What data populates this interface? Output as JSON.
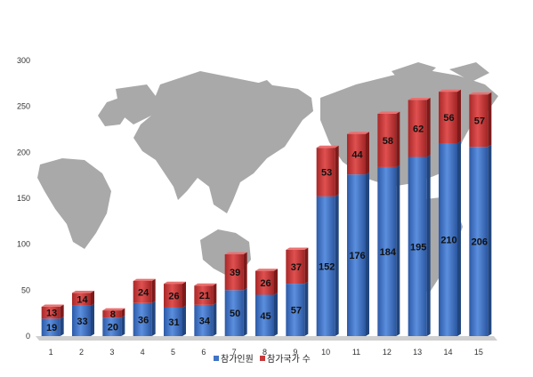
{
  "chart_data": {
    "type": "bar",
    "stacked": true,
    "categories": [
      "1",
      "2",
      "3",
      "4",
      "5",
      "6",
      "7",
      "8",
      "9",
      "10",
      "11",
      "12",
      "13",
      "14",
      "15"
    ],
    "series": [
      {
        "name": "참가인원",
        "color": "#3f74c6",
        "values": [
          19,
          33,
          20,
          36,
          31,
          34,
          50,
          45,
          57,
          152,
          176,
          184,
          195,
          210,
          206
        ]
      },
      {
        "name": "참가국가 수",
        "color": "#c83a3a",
        "values": [
          13,
          14,
          8,
          24,
          26,
          21,
          39,
          26,
          37,
          53,
          44,
          58,
          62,
          56,
          57
        ]
      }
    ],
    "ylim": [
      0,
      300
    ],
    "yticks": [
      0,
      50,
      100,
      150,
      200,
      250,
      300
    ],
    "legend_position": "bottom-right",
    "background": "gray world map",
    "title": "",
    "xlabel": "",
    "ylabel": ""
  }
}
